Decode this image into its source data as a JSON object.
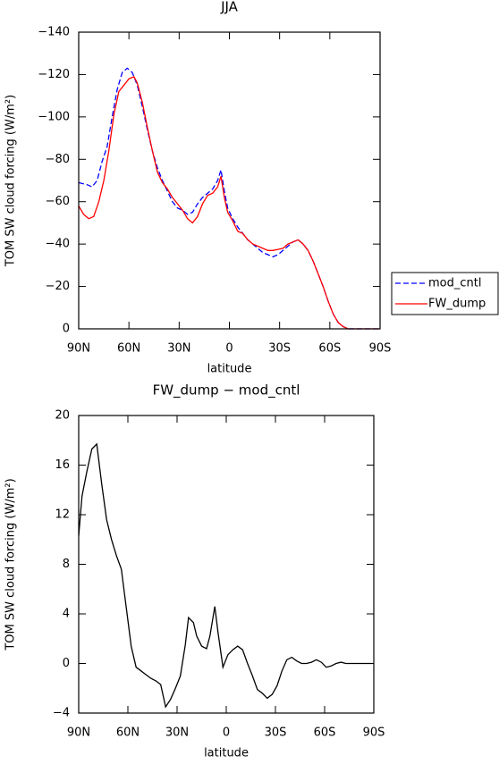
{
  "chart_data": [
    {
      "type": "line",
      "title": "JJA",
      "xlabel": "latitude",
      "ylabel": "TOM SW cloud forcing (W/m²)",
      "xlim": [
        90,
        -90
      ],
      "ylim": [
        0,
        -140
      ],
      "xticks": [
        {
          "value": 90,
          "label": "90N"
        },
        {
          "value": 60,
          "label": "60N"
        },
        {
          "value": 30,
          "label": "30N"
        },
        0,
        {
          "value": -30,
          "label": "30S"
        },
        {
          "value": -60,
          "label": "60S"
        },
        {
          "value": -90,
          "label": "90S"
        }
      ],
      "yticks": [
        0,
        {
          "value": -20,
          "label": "−20"
        },
        {
          "value": -40,
          "label": "−40"
        },
        {
          "value": -60,
          "label": "−60"
        },
        {
          "value": -80,
          "label": "−80"
        },
        {
          "value": -100,
          "label": "−100"
        },
        {
          "value": -120,
          "label": "−120"
        },
        {
          "value": -140,
          "label": "−140"
        }
      ],
      "legend": "right",
      "series": [
        {
          "name": "mod_cntl",
          "color": "#0000ff",
          "dashed": true,
          "x": [
            90,
            85,
            82,
            79,
            76,
            73,
            70,
            67,
            64,
            61,
            58,
            55,
            52,
            49,
            46,
            43,
            40,
            37,
            34,
            31,
            28,
            25,
            22,
            19,
            16,
            13,
            10,
            7,
            5,
            3,
            1,
            -2,
            -5,
            -8,
            -11,
            -14,
            -17,
            -20,
            -23,
            -26,
            -29,
            -32,
            -35,
            -38,
            -41,
            -44,
            -47,
            -50,
            -53,
            -56,
            -59,
            -62,
            -65,
            -68,
            -71,
            -75,
            -80,
            -85,
            -90
          ],
          "values": [
            -69,
            -68,
            -67,
            -70,
            -79,
            -86,
            -100,
            -113,
            -121,
            -123,
            -121,
            -115,
            -105,
            -94,
            -84,
            -76,
            -70,
            -65,
            -60,
            -57,
            -56,
            -54,
            -55,
            -59,
            -62,
            -64,
            -66,
            -70,
            -75,
            -65,
            -57,
            -52,
            -48,
            -45,
            -42,
            -40,
            -38,
            -36,
            -35,
            -34,
            -35,
            -37,
            -39,
            -41,
            -42,
            -40,
            -37,
            -32,
            -26,
            -20,
            -13,
            -7,
            -3,
            -1,
            0,
            0,
            0,
            0,
            0
          ]
        },
        {
          "name": "FW_dump",
          "color": "#ff0000",
          "dashed": false,
          "x": [
            90,
            87,
            84,
            81,
            78,
            75,
            72,
            69,
            66,
            63,
            60,
            57,
            55,
            52,
            49,
            46,
            43,
            40,
            37,
            34,
            31,
            28,
            25,
            22,
            19,
            16,
            13,
            10,
            7,
            5,
            3,
            1,
            -2,
            -5,
            -8,
            -11,
            -14,
            -17,
            -20,
            -23,
            -26,
            -29,
            -32,
            -35,
            -38,
            -41,
            -44,
            -47,
            -50,
            -53,
            -56,
            -59,
            -62,
            -65,
            -68,
            -71,
            -75,
            -80,
            -85,
            -90
          ],
          "values": [
            -58,
            -54,
            -52,
            -53,
            -60,
            -70,
            -84,
            -101,
            -112,
            -115,
            -118,
            -119,
            -116,
            -107,
            -95,
            -84,
            -74,
            -69,
            -66,
            -62,
            -59,
            -56,
            -52,
            -50,
            -53,
            -59,
            -63,
            -64,
            -67,
            -72,
            -62,
            -55,
            -51,
            -46,
            -45,
            -42,
            -40,
            -39,
            -38,
            -37,
            -37,
            -37.5,
            -38,
            -40,
            -41,
            -42,
            -40,
            -37,
            -32,
            -26,
            -20,
            -13,
            -7,
            -3,
            -1,
            0,
            0,
            0,
            0,
            0
          ]
        }
      ]
    },
    {
      "type": "line",
      "title": "FW_dump − mod_cntl",
      "xlabel": "latitude",
      "ylabel": "TOM SW cloud forcing (W/m²)",
      "xlim": [
        90,
        -90
      ],
      "ylim": [
        -4,
        20
      ],
      "xticks": [
        {
          "value": 90,
          "label": "90N"
        },
        {
          "value": 60,
          "label": "60N"
        },
        {
          "value": 30,
          "label": "30N"
        },
        0,
        {
          "value": -30,
          "label": "30S"
        },
        {
          "value": -60,
          "label": "60S"
        },
        {
          "value": -90,
          "label": "90S"
        }
      ],
      "yticks": [
        {
          "value": -4,
          "label": "−4"
        },
        0,
        4,
        8,
        12,
        16,
        20
      ],
      "series": [
        {
          "color": "#000000",
          "dashed": false,
          "x": [
            90,
            88,
            85,
            82,
            79,
            76,
            73,
            70,
            67,
            64,
            61,
            58,
            55,
            52,
            49,
            46,
            43,
            40,
            37,
            34,
            31,
            28,
            25,
            23,
            20,
            18,
            15,
            12,
            10,
            7,
            5,
            2,
            -1,
            -4,
            -7,
            -10,
            -13,
            -16,
            -19,
            -22,
            -25,
            -28,
            -31,
            -34,
            -37,
            -40,
            -43,
            -46,
            -49,
            -52,
            -55,
            -58,
            -61,
            -64,
            -67,
            -70,
            -73,
            -80,
            -85,
            -89
          ],
          "values": [
            10.3,
            13.5,
            15.5,
            17.3,
            17.7,
            14.5,
            11.6,
            10,
            8.7,
            7.6,
            4.5,
            1.4,
            -0.3,
            -0.6,
            -0.9,
            -1.2,
            -1.4,
            -1.7,
            -3.5,
            -2.9,
            -2,
            -1,
            1.5,
            3.7,
            3.3,
            2.2,
            1.4,
            1.2,
            2.2,
            4.6,
            2.5,
            -0.3,
            0.7,
            1.1,
            1.4,
            1.1,
            0,
            -1,
            -2.1,
            -2.4,
            -2.8,
            -2.5,
            -1.8,
            -0.6,
            0.3,
            0.5,
            0.2,
            0,
            0,
            0.1,
            0.3,
            0.1,
            -0.3,
            -0.2,
            0,
            0.1,
            0,
            0,
            0,
            0
          ]
        }
      ]
    }
  ]
}
